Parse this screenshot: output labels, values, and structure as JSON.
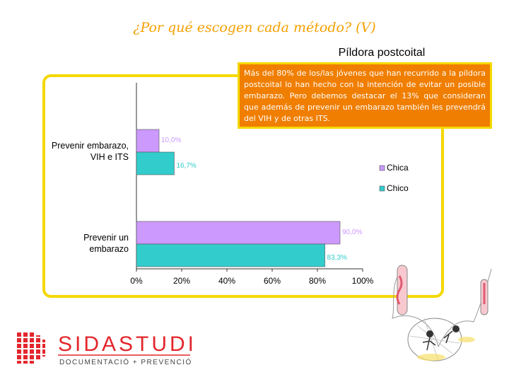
{
  "slide": {
    "title": "¿Por qué escogen cada método? (V)",
    "note": "Más del 80% de los/las jóvenes que han recurrido a la píldora postcoital lo han hecho con la intención de evitar un posible embarazo. Pero debemos destacar el 13% que consideran que además de prevenir un embarazo también les prevendrá del VIH y de otras ITS."
  },
  "logo": {
    "name": "SIDASTUDI",
    "tagline": "DOCUMENTACIÓ + PREVENCIÓ"
  },
  "colors": {
    "accent": "#f5a000",
    "frame": "#f5d800",
    "note_bg": "#f07e00",
    "chica": "#cc99ff",
    "chico": "#33cccc"
  },
  "chart_data": {
    "type": "bar",
    "orientation": "horizontal",
    "title": "Píldora postcoital",
    "categories": [
      "Prevenir embarazo, VIH e ITS",
      "Prevenir un embarazo"
    ],
    "category_lines": [
      [
        "Prevenir embarazo,",
        "VIH e ITS"
      ],
      [
        "Prevenir un",
        "embarazo"
      ]
    ],
    "series": [
      {
        "name": "Chica",
        "color": "#cc99ff",
        "values": [
          10.0,
          90.0
        ],
        "labels": [
          "10,0%",
          "90,0%"
        ]
      },
      {
        "name": "Chico",
        "color": "#33cccc",
        "values": [
          16.7,
          83.3
        ],
        "labels": [
          "16,7%",
          "83,3%"
        ]
      }
    ],
    "xlim": [
      0,
      100
    ],
    "xticks": [
      "0%",
      "20%",
      "40%",
      "60%",
      "80%",
      "100%"
    ],
    "legend_position": "right"
  }
}
